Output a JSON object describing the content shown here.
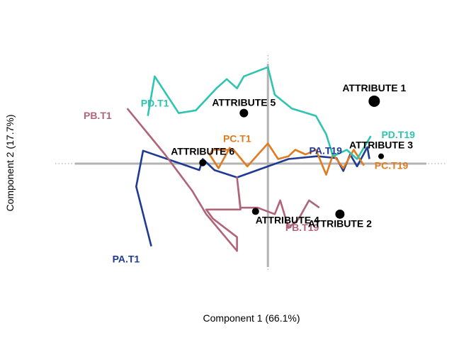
{
  "chart_data": {
    "type": "biplot-trajectory",
    "xlabel": "Component 1 (66.1%)",
    "ylabel": "Component 2 (17.7%)",
    "xlim": [
      -3.1,
      2.6
    ],
    "ylim": [
      -1.55,
      1.55
    ],
    "reference_lines": {
      "x": 0,
      "y": 0,
      "style": "dotted-grey",
      "thick_segment": true
    },
    "series": [
      {
        "name": "PA",
        "color": "#1f3a93",
        "start_label": "PA.T1",
        "end_label": "PA.T19",
        "points": [
          [
            -1.7,
            -0.9
          ],
          [
            -1.92,
            -0.25
          ],
          [
            -1.82,
            0.14
          ],
          [
            -1.0,
            -0.07
          ],
          [
            -0.95,
            0.05
          ],
          [
            -0.78,
            -0.07
          ],
          [
            -0.45,
            -0.15
          ],
          [
            0.0,
            -0.03
          ],
          [
            0.3,
            0.05
          ],
          [
            0.72,
            0.08
          ],
          [
            1.0,
            0.06
          ],
          [
            1.1,
            -0.08
          ],
          [
            1.2,
            0.1
          ],
          [
            1.3,
            -0.03
          ],
          [
            1.45,
            0.18
          ],
          [
            1.48,
            0.05
          ]
        ]
      },
      {
        "name": "PB",
        "color": "#b06478",
        "start_label": "PB.T1",
        "end_label": "PB.T19",
        "points": [
          [
            -2.05,
            0.6
          ],
          [
            -1.5,
            0.1
          ],
          [
            -1.1,
            -0.3
          ],
          [
            -0.9,
            -0.55
          ],
          [
            -0.45,
            -0.95
          ],
          [
            -0.45,
            -0.8
          ],
          [
            -0.8,
            -0.6
          ],
          [
            -0.9,
            -0.5
          ],
          [
            -0.4,
            -0.5
          ],
          [
            -0.45,
            -0.15
          ],
          [
            -0.4,
            -0.48
          ],
          [
            -0.15,
            -0.48
          ],
          [
            0.1,
            -0.55
          ],
          [
            0.18,
            -0.4
          ],
          [
            0.3,
            -0.7
          ],
          [
            0.45,
            -0.6
          ],
          [
            0.6,
            -0.4
          ],
          [
            0.75,
            -0.48
          ]
        ]
      },
      {
        "name": "PC",
        "color": "#e07b1f",
        "start_label": "PC.T1",
        "end_label": "PC.T19",
        "points": [
          [
            -0.55,
            0.18
          ],
          [
            -0.72,
            -0.05
          ],
          [
            -0.85,
            0.1
          ],
          [
            -0.8,
            0.15
          ],
          [
            -0.5,
            0.15
          ],
          [
            -0.3,
            -0.03
          ],
          [
            0.0,
            0.22
          ],
          [
            0.15,
            0.05
          ],
          [
            0.3,
            0.08
          ],
          [
            0.4,
            0.15
          ],
          [
            0.55,
            0.1
          ],
          [
            0.7,
            0.15
          ],
          [
            0.85,
            -0.12
          ],
          [
            0.95,
            0.1
          ],
          [
            1.1,
            -0.05
          ],
          [
            1.25,
            0.15
          ],
          [
            1.4,
            -0.02
          ]
        ]
      },
      {
        "name": "PD",
        "color": "#2ec4b0",
        "start_label": "PD.T1",
        "end_label": "PD.T19",
        "points": [
          [
            -1.75,
            0.52
          ],
          [
            -1.65,
            0.95
          ],
          [
            -1.3,
            0.55
          ],
          [
            -1.05,
            0.58
          ],
          [
            -0.75,
            0.82
          ],
          [
            -0.6,
            0.92
          ],
          [
            -0.45,
            0.82
          ],
          [
            -0.35,
            0.95
          ],
          [
            0.0,
            1.05
          ],
          [
            0.1,
            0.75
          ],
          [
            0.35,
            0.6
          ],
          [
            0.7,
            0.52
          ],
          [
            0.85,
            0.32
          ],
          [
            0.95,
            0.08
          ],
          [
            1.15,
            0.15
          ],
          [
            1.3,
            0.05
          ],
          [
            1.5,
            0.3
          ]
        ]
      }
    ],
    "attributes": [
      {
        "name": "ATTRIBUTE 1",
        "x": 1.55,
        "y": 0.68,
        "size": 8
      },
      {
        "name": "ATTRIBUTE 2",
        "x": 1.05,
        "y": -0.55,
        "size": 6.5
      },
      {
        "name": "ATTRIBUTE 3",
        "x": 1.65,
        "y": 0.08,
        "size": 4
      },
      {
        "name": "ATTRIBUTE 4",
        "x": -0.18,
        "y": -0.52,
        "size": 5
      },
      {
        "name": "ATTRIBUTE 5",
        "x": -0.35,
        "y": 0.55,
        "size": 6
      },
      {
        "name": "ATTRIBUTE 6",
        "x": -0.95,
        "y": 0.01,
        "size": 5
      }
    ]
  }
}
